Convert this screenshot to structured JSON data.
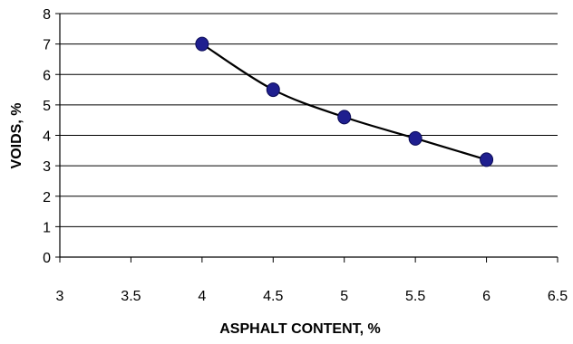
{
  "chart_data": {
    "type": "scatter",
    "title": "",
    "xlabel": "ASPHALT CONTENT, %",
    "ylabel": "VOIDS, %",
    "xlim": [
      3,
      6.5
    ],
    "ylim": [
      0,
      8
    ],
    "x_ticks": [
      3,
      3.5,
      4,
      4.5,
      5,
      5.5,
      6,
      6.5
    ],
    "y_ticks": [
      0,
      1,
      2,
      3,
      4,
      5,
      6,
      7,
      8
    ],
    "x_tick_labels": [
      "3",
      "3.5",
      "4",
      "4.5",
      "5",
      "5.5",
      "6",
      "6.5"
    ],
    "y_tick_labels": [
      "0",
      "1",
      "2",
      "3",
      "4",
      "5",
      "6",
      "7",
      "8"
    ],
    "grid": "horizontal",
    "legend": "none",
    "series": [
      {
        "points": [
          {
            "x": 4.0,
            "y": 7.0
          },
          {
            "x": 4.5,
            "y": 5.5
          },
          {
            "x": 5.0,
            "y": 4.6
          },
          {
            "x": 5.5,
            "y": 3.9
          },
          {
            "x": 6.0,
            "y": 3.2
          }
        ],
        "marker_color": "#1f1f8f",
        "trendline": "smooth",
        "trendline_color": "#000000"
      }
    ]
  }
}
